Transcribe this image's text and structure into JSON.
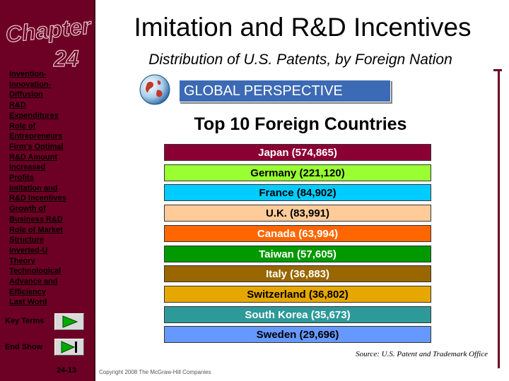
{
  "header": {
    "title": "Imitation and R&D Incentives",
    "subtitle": "Distribution of U.S. Patents, by Foreign Nation"
  },
  "sidebar": {
    "chapter_word": "Chapter",
    "chapter_number": "24",
    "nav_items": [
      "Invention-",
      "Innovation-",
      "Diffusion",
      "R&D",
      "Expenditures",
      "Role of",
      "Entrepreneurs",
      "Firm's Optimal",
      "R&D Amount",
      "Increased",
      "Profits",
      "Imitation and",
      "R&D Incentives",
      "Growth of",
      "Business R&D",
      "Role of Market",
      "Structure",
      "Inverted-U",
      "Theory",
      "Technological",
      "Advance and",
      "Efficiency",
      "Last Word"
    ],
    "key_terms_label": "Key Terms",
    "end_show_label": "End Show",
    "page_number": "24-13"
  },
  "banner": {
    "label": "GLOBAL PERSPECTIVE"
  },
  "chart_data": {
    "type": "table",
    "title": "Top 10 Foreign Countries",
    "categories": [
      "Japan",
      "Germany",
      "France",
      "U.K.",
      "Canada",
      "Taiwan",
      "Italy",
      "Switzerland",
      "South Korea",
      "Sweden"
    ],
    "values": [
      574865,
      221120,
      84902,
      83991,
      63994,
      57605,
      36883,
      36802,
      35673,
      29696
    ],
    "labels": [
      "Japan (574,865)",
      "Germany (221,120)",
      "France (84,902)",
      "U.K. (83,991)",
      "Canada (63,994)",
      "Taiwan (57,605)",
      "Italy (36,883)",
      "Switzerland (36,802)",
      "South Korea (35,673)",
      "Sweden (29,696)"
    ],
    "bar_colors": [
      "#8b0032",
      "#99ff33",
      "#00ccff",
      "#ffcc99",
      "#ff6600",
      "#009900",
      "#996600",
      "#e6a800",
      "#2e9999",
      "#6699ff"
    ],
    "text_colors": [
      "#ffffff",
      "#000000",
      "#000000",
      "#000000",
      "#ffffff",
      "#ffffff",
      "#ffffff",
      "#000000",
      "#ffffff",
      "#000000"
    ]
  },
  "footer": {
    "source": "Source: U.S. Patent and Trademark Office",
    "copyright": "Copyright 2008 The McGraw-Hill Companies"
  }
}
